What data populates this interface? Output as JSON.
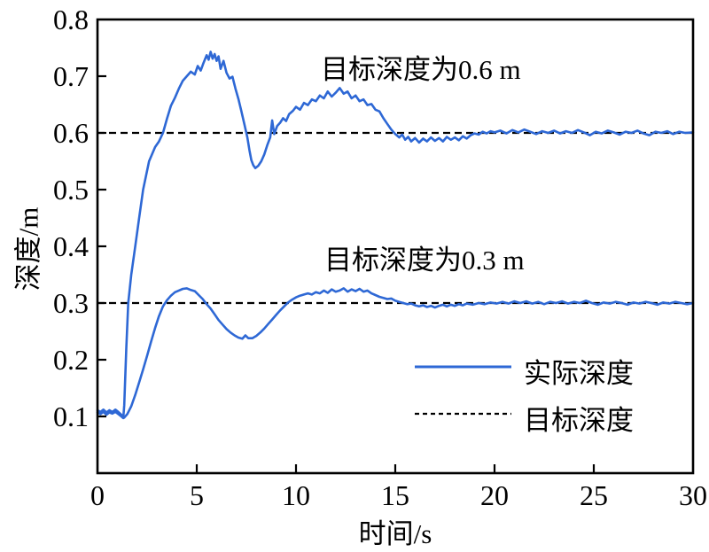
{
  "figure_title": "depth tracking response curves",
  "chart_data": {
    "type": "line",
    "title": "",
    "xlabel": "时间/s",
    "ylabel": "深度/m",
    "xlim": [
      0,
      30
    ],
    "ylim": [
      0,
      0.8
    ],
    "x_ticks": [
      0,
      5,
      10,
      15,
      20,
      25,
      30
    ],
    "x_tick_labels": [
      "0",
      "5",
      "10",
      "15",
      "20",
      "25",
      "30"
    ],
    "y_ticks": [
      0.1,
      0.2,
      0.3,
      0.4,
      0.5,
      0.6,
      0.7,
      0.8
    ],
    "y_tick_labels": [
      "0.1",
      "0.2",
      "0.3",
      "0.4",
      "0.5",
      "0.6",
      "0.7",
      "0.8"
    ],
    "grid": false,
    "legend_position": "lower right",
    "colors": {
      "actual": "#2E68D5",
      "target": "#000000",
      "axis": "#000000"
    },
    "annotations": [
      {
        "text": "目标深度为0.6 m",
        "t": 11.25,
        "depth": 0.752
      },
      {
        "text": "目标深度为0.3 m",
        "t": 11.43,
        "depth": 0.416
      }
    ],
    "legend": [
      {
        "label": "实际深度",
        "style": "solid",
        "color": "#2E68D5"
      },
      {
        "label": "目标深度",
        "style": "dashed",
        "color": "#000000"
      }
    ],
    "target_lines": [
      {
        "name": "target-depth-0.6",
        "value": 0.6
      },
      {
        "name": "target-depth-0.3",
        "value": 0.3
      }
    ],
    "series": [
      {
        "name": "actual-depth-target-0.6m",
        "color": "#2E68D5",
        "points": [
          [
            0,
            0.107
          ],
          [
            0.15,
            0.104
          ],
          [
            0.3,
            0.108
          ],
          [
            0.45,
            0.103
          ],
          [
            0.6,
            0.107
          ],
          [
            0.75,
            0.105
          ],
          [
            0.9,
            0.108
          ],
          [
            1.05,
            0.104
          ],
          [
            1.2,
            0.1
          ],
          [
            1.3,
            0.097
          ],
          [
            1.35,
            0.12
          ],
          [
            1.45,
            0.22
          ],
          [
            1.55,
            0.3
          ],
          [
            1.7,
            0.35
          ],
          [
            1.9,
            0.4
          ],
          [
            2.1,
            0.45
          ],
          [
            2.3,
            0.5
          ],
          [
            2.6,
            0.55
          ],
          [
            2.9,
            0.575
          ],
          [
            3.1,
            0.585
          ],
          [
            3.3,
            0.6
          ],
          [
            3.5,
            0.625
          ],
          [
            3.7,
            0.648
          ],
          [
            3.9,
            0.662
          ],
          [
            4.1,
            0.678
          ],
          [
            4.3,
            0.692
          ],
          [
            4.5,
            0.7
          ],
          [
            4.7,
            0.708
          ],
          [
            4.9,
            0.703
          ],
          [
            5.05,
            0.718
          ],
          [
            5.2,
            0.71
          ],
          [
            5.35,
            0.724
          ],
          [
            5.5,
            0.737
          ],
          [
            5.6,
            0.729
          ],
          [
            5.7,
            0.743
          ],
          [
            5.8,
            0.731
          ],
          [
            5.9,
            0.739
          ],
          [
            6,
            0.727
          ],
          [
            6.1,
            0.735
          ],
          [
            6.2,
            0.713
          ],
          [
            6.35,
            0.727
          ],
          [
            6.5,
            0.706
          ],
          [
            6.65,
            0.696
          ],
          [
            6.8,
            0.699
          ],
          [
            6.95,
            0.678
          ],
          [
            7.1,
            0.66
          ],
          [
            7.25,
            0.638
          ],
          [
            7.4,
            0.615
          ],
          [
            7.55,
            0.592
          ],
          [
            7.65,
            0.57
          ],
          [
            7.75,
            0.552
          ],
          [
            7.85,
            0.543
          ],
          [
            7.95,
            0.538
          ],
          [
            8.1,
            0.542
          ],
          [
            8.25,
            0.55
          ],
          [
            8.4,
            0.562
          ],
          [
            8.55,
            0.578
          ],
          [
            8.7,
            0.592
          ],
          [
            8.8,
            0.622
          ],
          [
            8.9,
            0.598
          ],
          [
            9.05,
            0.612
          ],
          [
            9.2,
            0.618
          ],
          [
            9.35,
            0.626
          ],
          [
            9.5,
            0.621
          ],
          [
            9.65,
            0.633
          ],
          [
            9.85,
            0.639
          ],
          [
            10,
            0.646
          ],
          [
            10.2,
            0.641
          ],
          [
            10.4,
            0.653
          ],
          [
            10.6,
            0.649
          ],
          [
            10.8,
            0.659
          ],
          [
            11,
            0.656
          ],
          [
            11.2,
            0.666
          ],
          [
            11.4,
            0.661
          ],
          [
            11.6,
            0.673
          ],
          [
            11.8,
            0.664
          ],
          [
            12,
            0.671
          ],
          [
            12.2,
            0.679
          ],
          [
            12.4,
            0.669
          ],
          [
            12.6,
            0.673
          ],
          [
            12.8,
            0.661
          ],
          [
            13,
            0.666
          ],
          [
            13.2,
            0.656
          ],
          [
            13.4,
            0.659
          ],
          [
            13.6,
            0.649
          ],
          [
            13.8,
            0.651
          ],
          [
            14,
            0.641
          ],
          [
            14.2,
            0.638
          ],
          [
            14.4,
            0.626
          ],
          [
            14.6,
            0.616
          ],
          [
            14.8,
            0.606
          ],
          [
            15,
            0.598
          ],
          [
            15.2,
            0.592
          ],
          [
            15.35,
            0.597
          ],
          [
            15.5,
            0.588
          ],
          [
            15.65,
            0.593
          ],
          [
            15.8,
            0.585
          ],
          [
            16,
            0.591
          ],
          [
            16.2,
            0.583
          ],
          [
            16.4,
            0.59
          ],
          [
            16.6,
            0.585
          ],
          [
            16.8,
            0.592
          ],
          [
            17,
            0.586
          ],
          [
            17.2,
            0.591
          ],
          [
            17.4,
            0.585
          ],
          [
            17.6,
            0.593
          ],
          [
            17.8,
            0.588
          ],
          [
            18,
            0.592
          ],
          [
            18.2,
            0.587
          ],
          [
            18.4,
            0.594
          ],
          [
            18.6,
            0.59
          ],
          [
            18.8,
            0.596
          ],
          [
            19,
            0.599
          ],
          [
            19.2,
            0.597
          ],
          [
            19.4,
            0.602
          ],
          [
            19.6,
            0.599
          ],
          [
            19.8,
            0.603
          ],
          [
            20,
            0.601
          ],
          [
            20.3,
            0.604
          ],
          [
            20.6,
            0.599
          ],
          [
            20.9,
            0.605
          ],
          [
            21.2,
            0.601
          ],
          [
            21.5,
            0.606
          ],
          [
            21.8,
            0.602
          ],
          [
            22.1,
            0.598
          ],
          [
            22.4,
            0.603
          ],
          [
            22.7,
            0.6
          ],
          [
            23,
            0.604
          ],
          [
            23.3,
            0.599
          ],
          [
            23.6,
            0.603
          ],
          [
            23.9,
            0.6
          ],
          [
            24.2,
            0.605
          ],
          [
            24.5,
            0.601
          ],
          [
            24.8,
            0.596
          ],
          [
            25.1,
            0.602
          ],
          [
            25.4,
            0.599
          ],
          [
            25.7,
            0.604
          ],
          [
            26,
            0.601
          ],
          [
            26.3,
            0.597
          ],
          [
            26.6,
            0.602
          ],
          [
            26.9,
            0.6
          ],
          [
            27.2,
            0.604
          ],
          [
            27.5,
            0.599
          ],
          [
            27.8,
            0.596
          ],
          [
            28.1,
            0.602
          ],
          [
            28.4,
            0.6
          ],
          [
            28.7,
            0.603
          ],
          [
            29,
            0.598
          ],
          [
            29.3,
            0.602
          ],
          [
            29.6,
            0.6
          ],
          [
            30,
            0.601
          ]
        ]
      },
      {
        "name": "actual-depth-target-0.3m",
        "color": "#2E68D5",
        "points": [
          [
            0,
            0.111
          ],
          [
            0.15,
            0.108
          ],
          [
            0.3,
            0.112
          ],
          [
            0.45,
            0.107
          ],
          [
            0.6,
            0.111
          ],
          [
            0.75,
            0.108
          ],
          [
            0.9,
            0.112
          ],
          [
            1.05,
            0.108
          ],
          [
            1.2,
            0.103
          ],
          [
            1.35,
            0.098
          ],
          [
            1.5,
            0.104
          ],
          [
            1.7,
            0.118
          ],
          [
            1.9,
            0.138
          ],
          [
            2.1,
            0.16
          ],
          [
            2.3,
            0.183
          ],
          [
            2.5,
            0.207
          ],
          [
            2.7,
            0.232
          ],
          [
            2.9,
            0.256
          ],
          [
            3.1,
            0.277
          ],
          [
            3.3,
            0.294
          ],
          [
            3.5,
            0.305
          ],
          [
            3.7,
            0.313
          ],
          [
            3.9,
            0.319
          ],
          [
            4.1,
            0.322
          ],
          [
            4.3,
            0.325
          ],
          [
            4.5,
            0.326
          ],
          [
            4.7,
            0.323
          ],
          [
            4.9,
            0.321
          ],
          [
            5.1,
            0.314
          ],
          [
            5.3,
            0.307
          ],
          [
            5.5,
            0.298
          ],
          [
            5.7,
            0.29
          ],
          [
            5.9,
            0.28
          ],
          [
            6.1,
            0.27
          ],
          [
            6.3,
            0.262
          ],
          [
            6.5,
            0.254
          ],
          [
            6.7,
            0.248
          ],
          [
            6.9,
            0.243
          ],
          [
            7.1,
            0.239
          ],
          [
            7.3,
            0.237
          ],
          [
            7.45,
            0.243
          ],
          [
            7.6,
            0.238
          ],
          [
            7.8,
            0.238
          ],
          [
            8,
            0.242
          ],
          [
            8.2,
            0.248
          ],
          [
            8.4,
            0.255
          ],
          [
            8.6,
            0.263
          ],
          [
            8.8,
            0.271
          ],
          [
            9,
            0.279
          ],
          [
            9.2,
            0.287
          ],
          [
            9.4,
            0.294
          ],
          [
            9.6,
            0.301
          ],
          [
            9.8,
            0.306
          ],
          [
            10,
            0.31
          ],
          [
            10.2,
            0.313
          ],
          [
            10.4,
            0.315
          ],
          [
            10.6,
            0.317
          ],
          [
            10.8,
            0.315
          ],
          [
            11,
            0.319
          ],
          [
            11.2,
            0.317
          ],
          [
            11.4,
            0.322
          ],
          [
            11.6,
            0.318
          ],
          [
            11.8,
            0.324
          ],
          [
            12,
            0.32
          ],
          [
            12.2,
            0.322
          ],
          [
            12.4,
            0.326
          ],
          [
            12.6,
            0.32
          ],
          [
            12.8,
            0.324
          ],
          [
            13,
            0.321
          ],
          [
            13.2,
            0.325
          ],
          [
            13.4,
            0.32
          ],
          [
            13.6,
            0.322
          ],
          [
            13.8,
            0.317
          ],
          [
            14,
            0.314
          ],
          [
            14.2,
            0.311
          ],
          [
            14.4,
            0.309
          ],
          [
            14.6,
            0.307
          ],
          [
            14.8,
            0.308
          ],
          [
            15,
            0.304
          ],
          [
            15.2,
            0.302
          ],
          [
            15.4,
            0.3
          ],
          [
            15.6,
            0.298
          ],
          [
            15.8,
            0.299
          ],
          [
            16,
            0.296
          ],
          [
            16.2,
            0.294
          ],
          [
            16.4,
            0.296
          ],
          [
            16.6,
            0.293
          ],
          [
            16.8,
            0.295
          ],
          [
            17,
            0.292
          ],
          [
            17.2,
            0.295
          ],
          [
            17.4,
            0.297
          ],
          [
            17.6,
            0.294
          ],
          [
            17.8,
            0.297
          ],
          [
            18,
            0.295
          ],
          [
            18.2,
            0.298
          ],
          [
            18.4,
            0.296
          ],
          [
            18.6,
            0.299
          ],
          [
            18.9,
            0.297
          ],
          [
            19.2,
            0.3
          ],
          [
            19.5,
            0.298
          ],
          [
            19.8,
            0.301
          ],
          [
            20.1,
            0.299
          ],
          [
            20.4,
            0.302
          ],
          [
            20.7,
            0.299
          ],
          [
            21,
            0.303
          ],
          [
            21.3,
            0.3
          ],
          [
            21.6,
            0.303
          ],
          [
            21.9,
            0.299
          ],
          [
            22.2,
            0.302
          ],
          [
            22.5,
            0.298
          ],
          [
            22.8,
            0.302
          ],
          [
            23.1,
            0.3
          ],
          [
            23.4,
            0.303
          ],
          [
            23.7,
            0.299
          ],
          [
            24,
            0.302
          ],
          [
            24.3,
            0.3
          ],
          [
            24.6,
            0.304
          ],
          [
            24.9,
            0.3
          ],
          [
            25.2,
            0.297
          ],
          [
            25.5,
            0.301
          ],
          [
            25.8,
            0.299
          ],
          [
            26.1,
            0.302
          ],
          [
            26.4,
            0.3
          ],
          [
            26.7,
            0.297
          ],
          [
            27,
            0.301
          ],
          [
            27.3,
            0.299
          ],
          [
            27.6,
            0.302
          ],
          [
            27.9,
            0.3
          ],
          [
            28.2,
            0.297
          ],
          [
            28.5,
            0.301
          ],
          [
            28.8,
            0.299
          ],
          [
            29.1,
            0.302
          ],
          [
            29.4,
            0.3
          ],
          [
            29.7,
            0.298
          ],
          [
            30,
            0.3
          ]
        ]
      }
    ]
  }
}
